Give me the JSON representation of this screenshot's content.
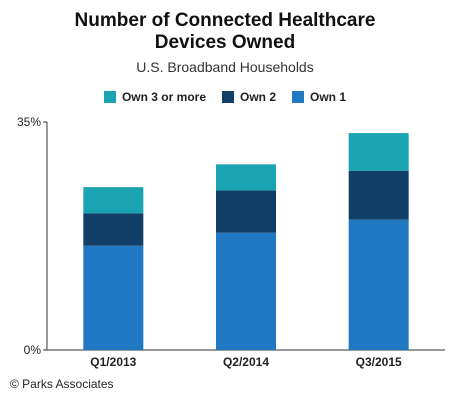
{
  "chart_data": {
    "type": "bar",
    "stacked": true,
    "title_lines": [
      "Number of Connected Healthcare",
      "Devices Owned"
    ],
    "subtitle": "U.S. Broadband Households",
    "categories": [
      "Q1/2013",
      "Q2/2014",
      "Q3/2015"
    ],
    "series": [
      {
        "name": "Own 1",
        "color": "#1f78c1",
        "values": [
          16,
          18,
          20
        ]
      },
      {
        "name": "Own 2",
        "color": "#123f68",
        "values": [
          5,
          6.5,
          7.5
        ]
      },
      {
        "name": "Own 3 or more",
        "color": "#1aa3b0",
        "values": [
          4,
          4,
          5.8
        ]
      }
    ],
    "legend_order": [
      "Own 3 or more",
      "Own 2",
      "Own 1"
    ],
    "ylim": [
      0,
      35
    ],
    "y_ticks": [
      "0%",
      "35%"
    ],
    "legend_position": "top",
    "grid": false
  },
  "source": "© Parks Associates"
}
